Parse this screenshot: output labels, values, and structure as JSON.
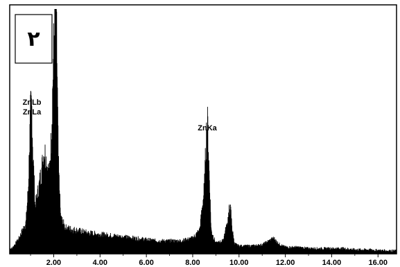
{
  "chart_data": {
    "type": "line",
    "title": "",
    "xlabel": "",
    "ylabel": "",
    "panel_label": "٢",
    "xlim": [
      0.1,
      16.8
    ],
    "ylim": [
      0,
      100
    ],
    "x_ticks": [
      "2.00",
      "4.00",
      "6.00",
      "8.00",
      "10.00",
      "12.00",
      "14.00",
      "16.00"
    ],
    "x_tick_values": [
      2,
      4,
      6,
      8,
      10,
      12,
      14,
      16
    ],
    "grid": false,
    "series": [
      {
        "x": [
          0.2,
          0.5,
          0.8,
          0.9,
          1.0,
          1.05,
          1.1,
          1.2,
          1.35,
          1.5,
          1.6,
          1.7,
          1.8,
          1.9,
          2.0,
          2.05,
          2.1,
          2.15,
          2.2,
          2.3,
          2.5,
          3.0,
          3.5,
          4.0,
          4.5,
          5.0,
          5.5,
          6.0,
          6.5,
          7.0,
          7.5,
          8.0,
          8.3,
          8.5,
          8.6,
          8.65,
          8.7,
          8.8,
          9.0,
          9.3,
          9.5,
          9.6,
          9.65,
          9.7,
          9.8,
          10.0,
          10.5,
          11.0,
          11.3,
          11.5,
          11.7,
          12.0,
          12.5,
          13.0,
          13.5,
          14.0,
          14.5,
          15.0,
          15.5,
          16.0,
          16.5,
          16.8
        ],
        "values": [
          2,
          6,
          12,
          25,
          55,
          58,
          40,
          18,
          25,
          34,
          40,
          35,
          30,
          45,
          80,
          97,
          100,
          70,
          35,
          14,
          10,
          9,
          8,
          7.5,
          7,
          6.5,
          6,
          5.5,
          5,
          5,
          5,
          6,
          9,
          25,
          48,
          50,
          35,
          9,
          4,
          5,
          12,
          18,
          16,
          10,
          4,
          3,
          3,
          3.5,
          5,
          6,
          4,
          2.5,
          2.5,
          2,
          2,
          2,
          2,
          1.5,
          1.5,
          1.2,
          1,
          1
        ]
      }
    ],
    "annotations": [
      {
        "text": "ZnLb",
        "x": 1.0
      },
      {
        "text": "ZnLa",
        "x": 1.0
      },
      {
        "text": "ZnKa",
        "x": 8.6
      }
    ]
  }
}
